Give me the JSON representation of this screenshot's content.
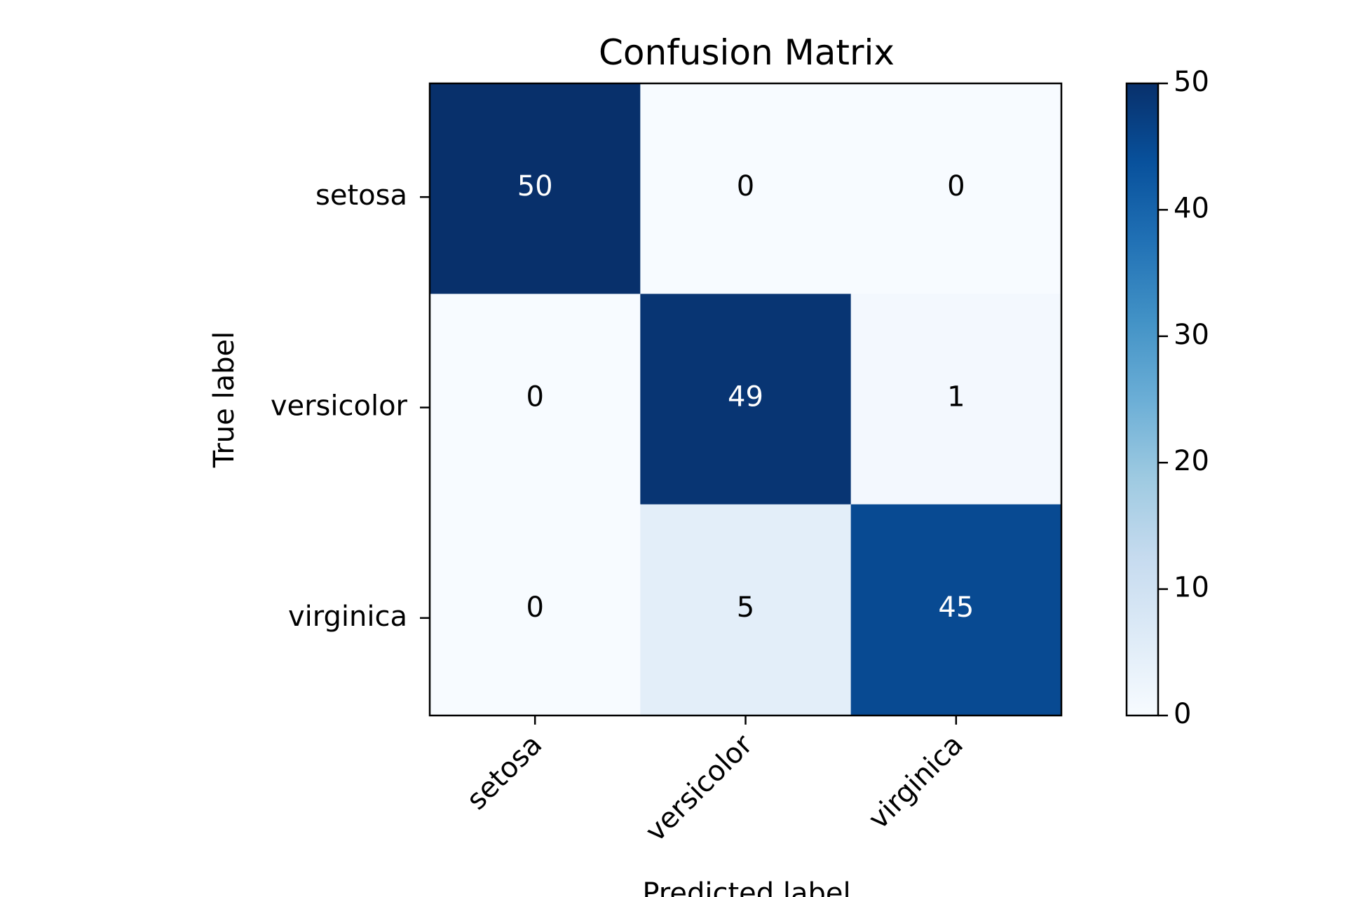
{
  "chart_data": {
    "type": "heatmap",
    "title": "Confusion Matrix",
    "xlabel": "Predicted label",
    "ylabel": "True label",
    "x_categories": [
      "setosa",
      "versicolor",
      "virginica"
    ],
    "y_categories": [
      "setosa",
      "versicolor",
      "virginica"
    ],
    "values": [
      [
        50,
        0,
        0
      ],
      [
        0,
        49,
        1
      ],
      [
        0,
        5,
        45
      ]
    ],
    "colormap": "Blues",
    "color_range": [
      0,
      50
    ],
    "colorbar": {
      "ticks": [
        0,
        10,
        20,
        30,
        40,
        50
      ],
      "tick_labels": [
        "0",
        "10",
        "20",
        "30",
        "40",
        "50"
      ]
    },
    "text_colors": {
      "dark_cell": "#ffffff",
      "light_cell": "#000000"
    },
    "grid": false,
    "legend": "colorbar-right"
  }
}
